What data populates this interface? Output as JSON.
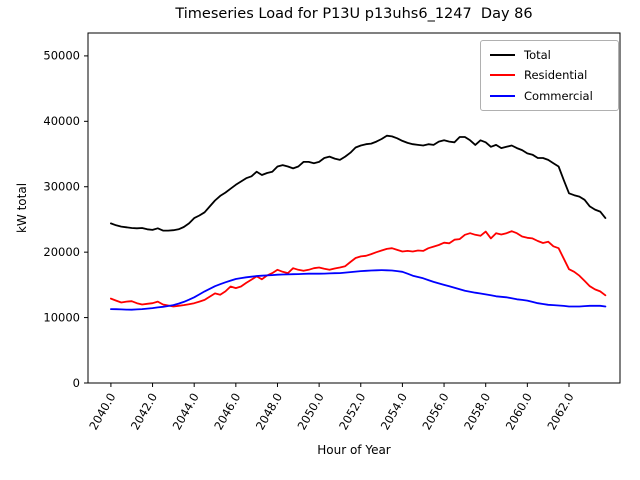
{
  "title": "Timeseries Load for P13U p13uhs6_1247  Day 86",
  "legend": {
    "entries": [
      {
        "label": "Total",
        "color": "#000000"
      },
      {
        "label": "Residential",
        "color": "#ff0000"
      },
      {
        "label": "Commercial",
        "color": "#0000ff"
      }
    ]
  },
  "chart_data": {
    "type": "line",
    "title": "Timeseries Load for P13U p13uhs6_1247  Day 86",
    "xlabel": "Hour of Year",
    "ylabel": "kW total",
    "grid": false,
    "legend_position": "upper right",
    "xlim": [
      2038.9,
      2064.45
    ],
    "ylim": [
      0,
      53500
    ],
    "xticks": [
      2040,
      2042,
      2044,
      2046,
      2048,
      2050,
      2052,
      2054,
      2056,
      2058,
      2060,
      2062
    ],
    "xtick_decimals": 1,
    "xtick_rotation": 60,
    "yticks": [
      0,
      10000,
      20000,
      30000,
      40000,
      50000
    ],
    "x": [
      2040.0,
      2040.25,
      2040.5,
      2040.75,
      2041.0,
      2041.25,
      2041.5,
      2041.75,
      2042.0,
      2042.25,
      2042.5,
      2042.75,
      2043.0,
      2043.25,
      2043.5,
      2043.75,
      2044.0,
      2044.25,
      2044.5,
      2044.75,
      2045.0,
      2045.25,
      2045.5,
      2045.75,
      2046.0,
      2046.25,
      2046.5,
      2046.75,
      2047.0,
      2047.25,
      2047.5,
      2047.75,
      2048.0,
      2048.25,
      2048.5,
      2048.75,
      2049.0,
      2049.25,
      2049.5,
      2049.75,
      2050.0,
      2050.25,
      2050.5,
      2050.75,
      2051.0,
      2051.25,
      2051.5,
      2051.75,
      2052.0,
      2052.25,
      2052.5,
      2052.75,
      2053.0,
      2053.25,
      2053.5,
      2053.75,
      2054.0,
      2054.25,
      2054.5,
      2054.75,
      2055.0,
      2055.25,
      2055.5,
      2055.75,
      2056.0,
      2056.25,
      2056.5,
      2056.75,
      2057.0,
      2057.25,
      2057.5,
      2057.75,
      2058.0,
      2058.25,
      2058.5,
      2058.75,
      2059.0,
      2059.25,
      2059.5,
      2059.75,
      2060.0,
      2060.25,
      2060.5,
      2060.75,
      2061.0,
      2061.25,
      2061.5,
      2061.75,
      2062.0,
      2062.25,
      2062.5,
      2062.75,
      2063.0,
      2063.25,
      2063.5,
      2063.75
    ],
    "series": [
      {
        "name": "Total",
        "color": "#000000",
        "values": [
          24400,
          24100,
          23900,
          23800,
          23700,
          23650,
          23700,
          23500,
          23400,
          23650,
          23300,
          23300,
          23350,
          23500,
          23850,
          24400,
          25200,
          25600,
          26100,
          27000,
          27900,
          28600,
          29100,
          29700,
          30300,
          30800,
          31300,
          31600,
          32300,
          31800,
          32100,
          32300,
          33100,
          33300,
          33100,
          32800,
          33100,
          33800,
          33800,
          33600,
          33800,
          34400,
          34600,
          34300,
          34100,
          34600,
          35200,
          36000,
          36300,
          36500,
          36600,
          36900,
          37300,
          37800,
          37700,
          37400,
          37000,
          36700,
          36500,
          36400,
          36300,
          36500,
          36400,
          36900,
          37100,
          36900,
          36800,
          37600,
          37600,
          37100,
          36400,
          37100,
          36800,
          36100,
          36400,
          35900,
          36100,
          36300,
          35900,
          35600,
          35100,
          34900,
          34400,
          34400,
          34100,
          33600,
          33100,
          31000,
          29000,
          28700,
          28500,
          28000,
          27000,
          26500,
          26200,
          25200
        ]
      },
      {
        "name": "Residential",
        "color": "#ff0000",
        "values": [
          12900,
          12600,
          12300,
          12450,
          12500,
          12200,
          12000,
          12100,
          12200,
          12450,
          12000,
          11850,
          11700,
          11800,
          11900,
          12050,
          12200,
          12450,
          12700,
          13200,
          13700,
          13500,
          14000,
          14750,
          14500,
          14750,
          15300,
          15800,
          16300,
          15850,
          16450,
          16800,
          17300,
          17000,
          16800,
          17550,
          17300,
          17150,
          17300,
          17550,
          17650,
          17450,
          17300,
          17500,
          17650,
          17850,
          18500,
          19100,
          19350,
          19450,
          19700,
          20000,
          20250,
          20500,
          20600,
          20350,
          20100,
          20200,
          20100,
          20250,
          20200,
          20600,
          20850,
          21100,
          21450,
          21350,
          21900,
          22000,
          22650,
          22900,
          22650,
          22500,
          23150,
          22100,
          22900,
          22700,
          22900,
          23200,
          22900,
          22400,
          22200,
          22100,
          21700,
          21400,
          21600,
          20900,
          20600,
          19000,
          17400,
          17000,
          16400,
          15600,
          14800,
          14300,
          14000,
          13400
        ]
      },
      {
        "name": "Commercial",
        "color": "#0000ff",
        "values": [
          11300,
          11280,
          11250,
          11220,
          11200,
          11250,
          11300,
          11370,
          11450,
          11550,
          11650,
          11770,
          11900,
          12130,
          12400,
          12730,
          13100,
          13550,
          14000,
          14400,
          14800,
          15100,
          15400,
          15650,
          15900,
          16030,
          16150,
          16250,
          16350,
          16400,
          16450,
          16500,
          16550,
          16580,
          16600,
          16630,
          16650,
          16680,
          16700,
          16700,
          16700,
          16730,
          16750,
          16780,
          16800,
          16870,
          16950,
          17030,
          17100,
          17150,
          17200,
          17230,
          17250,
          17230,
          17200,
          17100,
          17000,
          16700,
          16400,
          16200,
          16000,
          15730,
          15450,
          15230,
          15000,
          14780,
          14550,
          14330,
          14100,
          13950,
          13800,
          13680,
          13550,
          13400,
          13250,
          13180,
          13100,
          12950,
          12800,
          12700,
          12600,
          12400,
          12200,
          12080,
          11950,
          11900,
          11850,
          11780,
          11700,
          11700,
          11700,
          11750,
          11800,
          11800,
          11800,
          11700
        ]
      }
    ]
  }
}
